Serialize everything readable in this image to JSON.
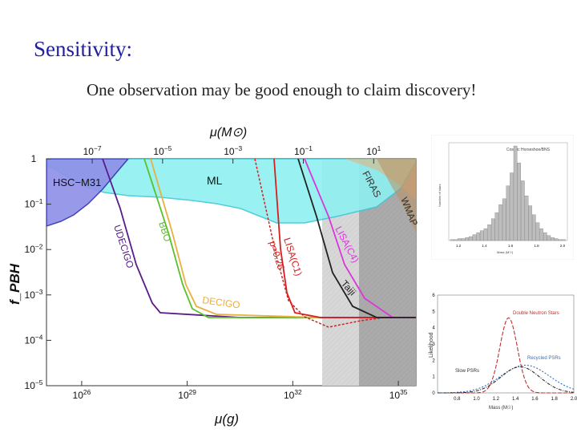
{
  "slide": {
    "title": "Sensitivity:",
    "subtitle": "One observation may be good enough to claim discovery!"
  },
  "chart_data": [
    {
      "type": "line",
      "title": "",
      "xlabel": "μ(g)",
      "ylabel": "f_PBH",
      "top_axis_label": "μ(M⊙)",
      "x_ticks": [
        "10^26",
        "10^29",
        "10^32",
        "10^35"
      ],
      "top_ticks": [
        "10^-7",
        "10^-5",
        "10^-3",
        "10^-1",
        "10^1"
      ],
      "y_ticks": [
        "1",
        "10^-1",
        "10^-2",
        "10^-3",
        "10^-4",
        "10^-5"
      ],
      "xlim_log10_g": [
        25,
        35.5
      ],
      "ylim_log10": [
        -5,
        0
      ],
      "regions": [
        {
          "name": "HSC−M31",
          "label": "HSC−M31",
          "color": "#8f8fe8"
        },
        {
          "name": "ML",
          "label": "ML",
          "color": "#8ff0f0"
        },
        {
          "name": "FIRAS",
          "label": "FIRAS",
          "color": "#e8b078"
        },
        {
          "name": "WMAP",
          "label": "WMAP",
          "color": "#b89060"
        }
      ],
      "curves": [
        {
          "name": "UDECIGO",
          "label": "UDECIGO",
          "color": "#5a1a8a"
        },
        {
          "name": "BBO",
          "label": "BBO",
          "color": "#5cc02a"
        },
        {
          "name": "DECIGO",
          "label": "DECIGO",
          "color": "#e8b040"
        },
        {
          "name": "LISA(C1)",
          "label": "LISA(C1)",
          "color": "#d42020"
        },
        {
          "name": "LISA p=0.25",
          "label": "p=0.25",
          "color": "#d42020"
        },
        {
          "name": "LISA(C4)",
          "label": "LISA(C4)",
          "color": "#d838d8"
        },
        {
          "name": "Taiji",
          "label": "Taiji",
          "color": "#222222"
        }
      ]
    },
    {
      "type": "bar",
      "title": "Cosmic Horseshoe/BNS",
      "xlabel": "Mass (M☉)",
      "ylabel": "Number of stars",
      "x_ticks": [
        "1.2",
        "1.4",
        "1.6",
        "1.8",
        "2.0"
      ],
      "values": [
        1,
        1,
        2,
        2,
        3,
        4,
        6,
        8,
        10,
        12,
        16,
        22,
        28,
        36,
        42,
        55,
        68,
        95,
        78,
        60,
        45,
        35,
        26,
        18,
        12,
        8,
        5,
        3,
        2,
        1,
        1
      ]
    },
    {
      "type": "line",
      "title": "",
      "xlabel": "Mass (M☉)",
      "ylabel": "Likelihood",
      "x_ticks": [
        "0.8",
        "1.0",
        "1.2",
        "1.4",
        "1.6",
        "1.8",
        "2.0"
      ],
      "y_ticks": [
        "0",
        "1",
        "2",
        "3",
        "4",
        "5",
        "6"
      ],
      "series": [
        {
          "name": "Double Neutron Stars",
          "label": "Double Neutron Stars",
          "color": "#c03030",
          "mean": 1.33,
          "sd": 0.09,
          "peak": 4.6
        },
        {
          "name": "Recycled PSRs",
          "label": "Recycled PSRs",
          "color": "#3070c0",
          "mean": 1.5,
          "sd": 0.25,
          "peak": 1.7
        },
        {
          "name": "Slow PSRs",
          "label": "Slow PSRs",
          "color": "#303030",
          "mean": 1.45,
          "sd": 0.2,
          "peak": 1.6
        }
      ]
    }
  ]
}
